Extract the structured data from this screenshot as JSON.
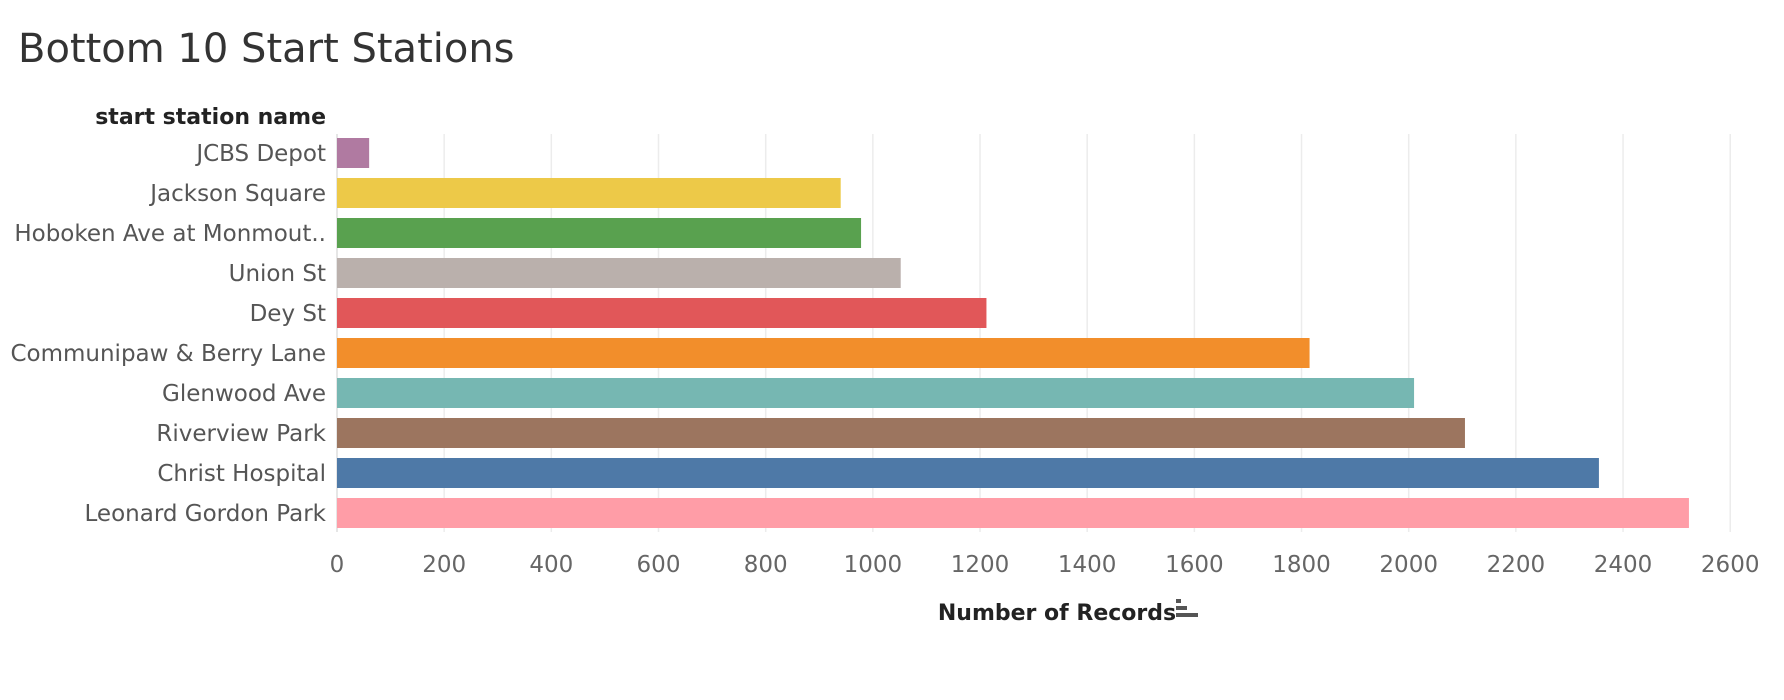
{
  "chart_data": {
    "type": "bar",
    "orientation": "horizontal",
    "title": "Bottom 10 Start Stations",
    "category_header": "start station name",
    "xlabel": "Number of Records",
    "sort_icon": "sort-descending-icon",
    "xlim": [
      0,
      2650
    ],
    "x_ticks": [
      0,
      200,
      400,
      600,
      800,
      1000,
      1200,
      1400,
      1600,
      1800,
      2000,
      2200,
      2400,
      2600
    ],
    "grid": true,
    "categories": [
      "JCBS Depot",
      "Jackson Square",
      "Hoboken Ave at Monmout..",
      "Union St",
      "Dey St",
      "Communipaw & Berry Lane",
      "Glenwood Ave",
      "Riverview Park",
      "Christ Hospital",
      "Leonard Gordon Park"
    ],
    "values": [
      60,
      940,
      978,
      1052,
      1212,
      1815,
      2010,
      2105,
      2355,
      2523
    ],
    "colors": [
      "#b07aa1",
      "#edc948",
      "#59a14f",
      "#bab0ac",
      "#e15759",
      "#f28e2b",
      "#76b7b2",
      "#9c755f",
      "#4e79a7",
      "#ff9da7"
    ]
  }
}
